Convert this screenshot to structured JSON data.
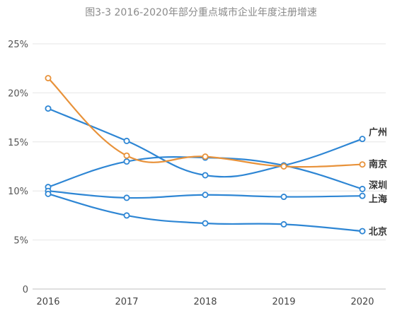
{
  "chart_data": {
    "type": "line",
    "title": "图3-3 2016-2020年部分重点城市企业年度注册增速",
    "x": [
      "2016",
      "2017",
      "2018",
      "2019",
      "2020"
    ],
    "y_tick_labels": [
      "0",
      "5%",
      "10%",
      "15%",
      "20%",
      "25%"
    ],
    "ylim": [
      0,
      25
    ],
    "grid": true,
    "legend": "inline-right",
    "series": [
      {
        "name": "广州",
        "color": "#2e86d4",
        "values": [
          18.4,
          15.1,
          11.6,
          12.6,
          15.3
        ]
      },
      {
        "name": "南京",
        "color": "#e8923a",
        "values": [
          21.5,
          13.6,
          13.5,
          12.5,
          12.7
        ]
      },
      {
        "name": "深圳",
        "color": "#2e86d4",
        "values": [
          10.4,
          13.0,
          13.4,
          12.6,
          10.2
        ]
      },
      {
        "name": "上海",
        "color": "#2e86d4",
        "values": [
          10.0,
          9.3,
          9.6,
          9.4,
          9.5
        ]
      },
      {
        "name": "北京",
        "color": "#2e86d4",
        "values": [
          9.7,
          7.5,
          6.7,
          6.6,
          5.9
        ]
      }
    ]
  }
}
